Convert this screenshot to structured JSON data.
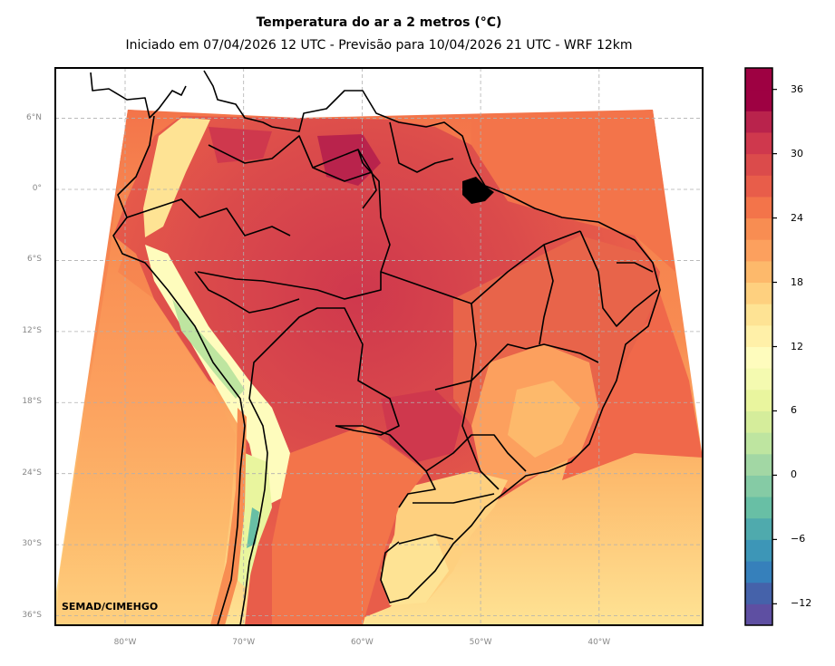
{
  "figure": {
    "title": "Temperatura do ar a 2 metros (°C)",
    "subtitle": "Iniciado em 07/04/2026 12 UTC - Previsão para 10/04/2026 21 UTC - WRF 12km",
    "credit": "SEMAD/CIMEHGO"
  },
  "map": {
    "variable": "2 m air temperature",
    "units": "°C",
    "lon_range": [
      -86,
      -31.5
    ],
    "lat_range": [
      -36.5,
      10
    ],
    "lat_ticks": [
      {
        "value": 6,
        "label": "6°N"
      },
      {
        "value": 0,
        "label": "0°"
      },
      {
        "value": -6,
        "label": "6°S"
      },
      {
        "value": -12,
        "label": "12°S"
      },
      {
        "value": -18,
        "label": "18°S"
      },
      {
        "value": -24,
        "label": "24°S"
      },
      {
        "value": -30,
        "label": "30°S"
      },
      {
        "value": -36,
        "label": "36°S"
      }
    ],
    "lon_ticks": [
      {
        "value": -80,
        "label": "80°W"
      },
      {
        "value": -70,
        "label": "70°W"
      },
      {
        "value": -60,
        "label": "60°W"
      },
      {
        "value": -50,
        "label": "50°W"
      },
      {
        "value": -40,
        "label": "40°W"
      }
    ],
    "gridlines": true,
    "colors": {
      "grid": "#b0b0b0",
      "border": "#000000",
      "frame": "#000000"
    }
  },
  "colorbar": {
    "min": -14,
    "max": 38,
    "step": 2,
    "ticks": [
      {
        "value": 36,
        "label": "36"
      },
      {
        "value": 30,
        "label": "30"
      },
      {
        "value": 24,
        "label": "24"
      },
      {
        "value": 18,
        "label": "18"
      },
      {
        "value": 12,
        "label": "12"
      },
      {
        "value": 6,
        "label": "6"
      },
      {
        "value": 0,
        "label": "0"
      },
      {
        "value": -6,
        "label": "−6"
      },
      {
        "value": -12,
        "label": "−12"
      }
    ],
    "bin_colors": [
      "#5e4fa2",
      "#4562aa",
      "#3680bb",
      "#3d96b7",
      "#4faaad",
      "#68bfa5",
      "#85cba5",
      "#a2d7a4",
      "#bee5a0",
      "#d5ed9b",
      "#e9f59e",
      "#f4fab0",
      "#fefcbd",
      "#fff0a8",
      "#fee394",
      "#fed07f",
      "#fdb96b",
      "#fca05e",
      "#f88d52",
      "#f3744a",
      "#e85d4a",
      "#db4b4b",
      "#cf384d",
      "#b9234c",
      "#9e0142",
      "#9e0142"
    ]
  }
}
